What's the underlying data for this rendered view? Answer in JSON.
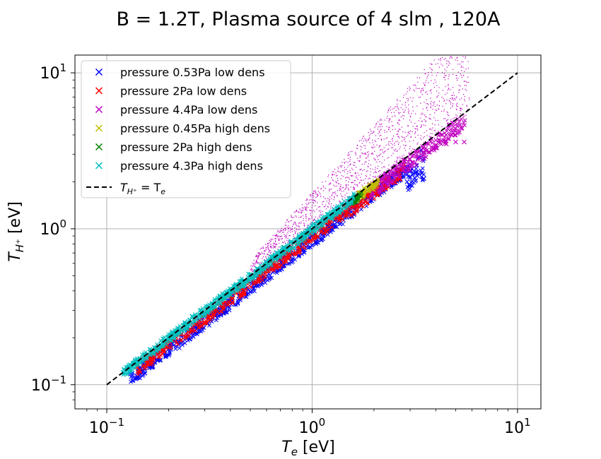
{
  "chart_data": {
    "type": "scatter",
    "title": "B = 1.2T, Plasma source of 4 slm , 120A",
    "xlabel": {
      "main": "T",
      "sub": "e",
      "unit": " [eV]"
    },
    "ylabel": {
      "main": "T",
      "sub": "H⁺",
      "unit": " [eV]"
    },
    "x_scale": "log",
    "y_scale": "log",
    "xlim": [
      0.07,
      13
    ],
    "ylim": [
      0.07,
      13
    ],
    "grid": true,
    "legend_position": "upper-left",
    "x_ticks": [
      {
        "value": 0.1,
        "base": "10",
        "exp": "−1"
      },
      {
        "value": 1,
        "base": "10",
        "exp": "0"
      },
      {
        "value": 10,
        "base": "10",
        "exp": "1"
      }
    ],
    "y_ticks": [
      {
        "value": 0.1,
        "base": "10",
        "exp": "−1"
      },
      {
        "value": 1,
        "base": "10",
        "exp": "0"
      },
      {
        "value": 10,
        "base": "10",
        "exp": "1"
      }
    ],
    "series": [
      {
        "name": "pressure 0.53Pa low dens",
        "color": "#0000ff",
        "marker": "x",
        "points": [
          [
            0.13,
            0.12
          ],
          [
            0.15,
            0.14
          ],
          [
            0.2,
            0.19
          ],
          [
            0.28,
            0.26
          ],
          [
            0.4,
            0.37
          ],
          [
            0.55,
            0.5
          ],
          [
            0.7,
            0.65
          ],
          [
            0.9,
            0.82
          ],
          [
            1.2,
            1.08
          ],
          [
            1.5,
            1.4
          ],
          [
            1.9,
            1.8
          ],
          [
            2.3,
            2.1
          ],
          [
            2.7,
            2.4
          ],
          [
            3.0,
            2.6
          ],
          [
            3.3,
            2.9
          ],
          [
            3.5,
            2.1
          ],
          [
            3.2,
            2.3
          ],
          [
            2.9,
            2.0
          ],
          [
            3.4,
            3.2
          ]
        ]
      },
      {
        "name": "pressure 2Pa low dens",
        "color": "#ff0000",
        "marker": "x",
        "points": [
          [
            0.14,
            0.13
          ],
          [
            0.2,
            0.19
          ],
          [
            0.3,
            0.28
          ],
          [
            0.45,
            0.42
          ],
          [
            0.65,
            0.6
          ],
          [
            0.9,
            0.83
          ],
          [
            1.2,
            1.1
          ],
          [
            1.5,
            1.35
          ],
          [
            1.7,
            1.7
          ],
          [
            2.0,
            1.9
          ],
          [
            2.3,
            2.1
          ],
          [
            2.6,
            2.3
          ],
          [
            2.8,
            2.6
          ],
          [
            2.5,
            2.0
          ]
        ]
      },
      {
        "name": "pressure 4.4Pa low dens",
        "color": "#bf00bf",
        "marker": "x",
        "points": [
          [
            1.9,
            1.9
          ],
          [
            2.2,
            2.1
          ],
          [
            2.6,
            2.4
          ],
          [
            3.0,
            2.8
          ],
          [
            3.5,
            3.1
          ],
          [
            4.0,
            3.3
          ],
          [
            4.5,
            3.5
          ],
          [
            5.0,
            3.6
          ],
          [
            5.5,
            3.6
          ]
        ]
      },
      {
        "name": "pressure 0.45Pa high dens",
        "color": "#bfbf00",
        "marker": "x",
        "points": [
          [
            1.7,
            1.7
          ],
          [
            1.8,
            1.75
          ],
          [
            1.9,
            1.8
          ],
          [
            2.0,
            1.85
          ]
        ]
      },
      {
        "name": "pressure 2Pa high dens",
        "color": "#008000",
        "marker": "x",
        "points": [
          [
            1.6,
            1.55
          ],
          [
            1.65,
            1.6
          ],
          [
            1.7,
            1.65
          ]
        ]
      },
      {
        "name": "pressure 4.3Pa high dens",
        "color": "#00bfbf",
        "marker": "x",
        "points": [
          [
            0.12,
            0.12
          ],
          [
            0.15,
            0.15
          ],
          [
            0.2,
            0.2
          ],
          [
            0.28,
            0.28
          ],
          [
            0.4,
            0.4
          ],
          [
            0.55,
            0.55
          ],
          [
            0.7,
            0.7
          ],
          [
            0.9,
            0.9
          ],
          [
            1.1,
            1.1
          ],
          [
            1.3,
            1.3
          ],
          [
            1.5,
            1.5
          ]
        ]
      }
    ],
    "reference_line": {
      "name": "T_H+ = T_e",
      "label_main": "T",
      "label_sub": "H⁺",
      "label_eq": " = T",
      "label_sub2": "e",
      "color": "#000000",
      "style": "dashed",
      "x": [
        0.1,
        10
      ],
      "y": [
        0.1,
        10
      ]
    },
    "magenta_dots": {
      "color": "#bf00bf"
    }
  }
}
